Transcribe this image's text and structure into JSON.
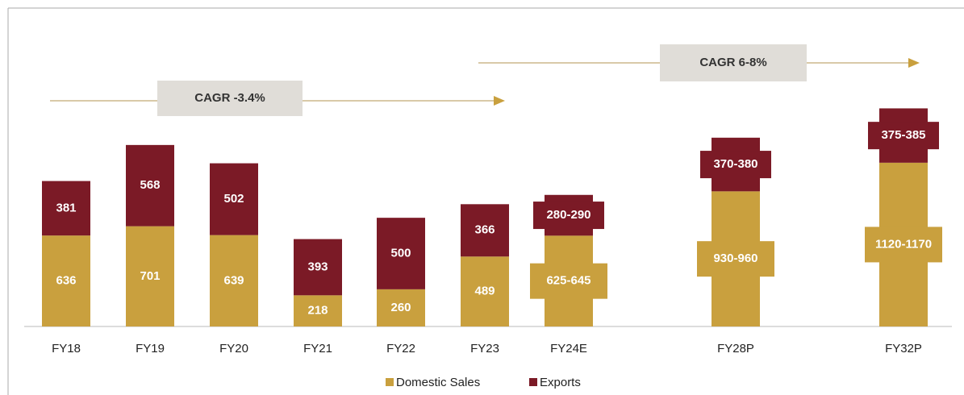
{
  "chart_data": {
    "type": "bar",
    "stacked": true,
    "categories": [
      "FY18",
      "FY19",
      "FY20",
      "FY21",
      "FY22",
      "FY23",
      "FY24E",
      "FY28P",
      "FY32P"
    ],
    "series": [
      {
        "name": "Domestic Sales",
        "color": "#c9a03e",
        "values": [
          636,
          701,
          639,
          218,
          260,
          489,
          635,
          945,
          1145
        ],
        "value_labels": [
          null,
          null,
          null,
          null,
          null,
          null,
          "625-645",
          "930-960",
          "1120-1170"
        ]
      },
      {
        "name": "Exports",
        "color": "#7b1a26",
        "values": [
          381,
          568,
          502,
          393,
          500,
          366,
          285,
          375,
          380
        ],
        "value_labels": [
          null,
          null,
          null,
          null,
          null,
          null,
          "280-290",
          "370-380",
          "375-385"
        ]
      }
    ],
    "ylim": [
      0,
      2170
    ],
    "annotations": [
      "CAGR -3.4%",
      "CAGR 6-8%"
    ],
    "legend": "bottom"
  }
}
